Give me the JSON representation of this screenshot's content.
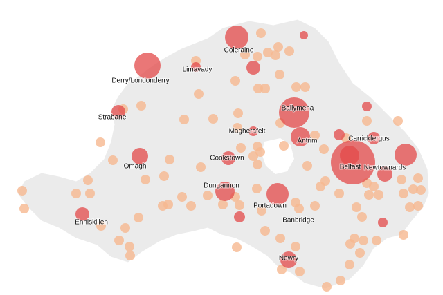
{
  "places": [
    {
      "label": "Coleraine"
    },
    {
      "label": "Limavady"
    },
    {
      "label": "Derry/Londonderry"
    },
    {
      "label": "Strabane"
    },
    {
      "label": "Ballymena"
    },
    {
      "label": "Magherafelt"
    },
    {
      "label": "Antrim"
    },
    {
      "label": "Carrickfergus"
    },
    {
      "label": "Cookstown"
    },
    {
      "label": "Omagh"
    },
    {
      "label": "Belfast"
    },
    {
      "label": "Newtownards"
    },
    {
      "label": "Dungannon"
    },
    {
      "label": "Portadown"
    },
    {
      "label": "Banbridge"
    },
    {
      "label": "Enniskillen"
    },
    {
      "label": "Newry"
    }
  ]
}
